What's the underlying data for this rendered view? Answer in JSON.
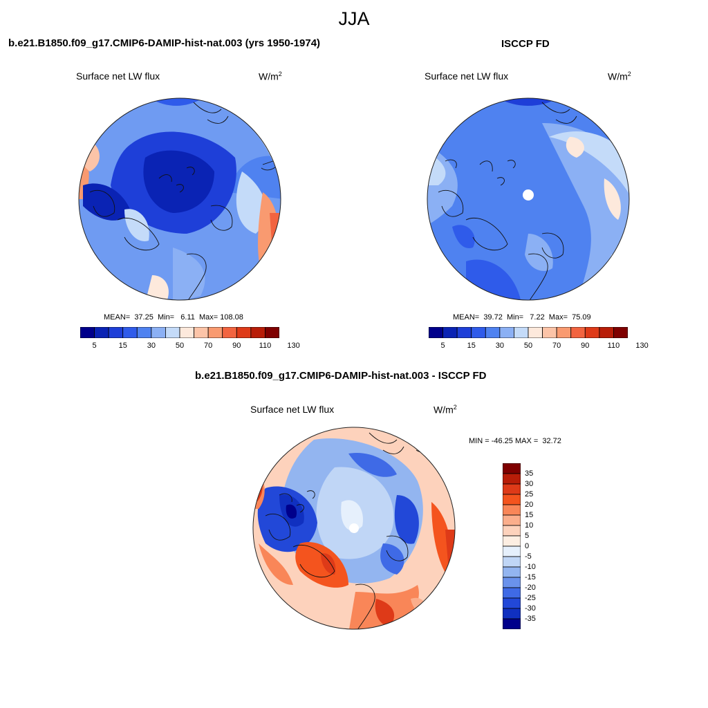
{
  "title": "JJA",
  "panels": [
    {
      "title": "b.e21.B1850.f09_g17.CMIP6-DAMIP-hist-nat.003 (yrs 1950-1974)",
      "variable": "Surface net LW flux",
      "units_base": "W/m",
      "units_sup": "2",
      "stats": "MEAN=  37.25  Min=   6.11  Max= 108.08",
      "colorbar": {
        "labels": [
          "5",
          "15",
          "30",
          "50",
          "70",
          "90",
          "110",
          "130"
        ],
        "colors": [
          "#00008b",
          "#0a23b4",
          "#1e3fd8",
          "#2f5bea",
          "#4f82f0",
          "#8bb0f4",
          "#c4dbf9",
          "#fde9dc",
          "#fcc4a8",
          "#f99a70",
          "#f26440",
          "#de3a18",
          "#b81d08",
          "#7f0000"
        ]
      }
    },
    {
      "title": "ISCCP FD",
      "variable": "Surface net LW flux",
      "units_base": "W/m",
      "units_sup": "2",
      "stats": "MEAN=  39.72  Min=   7.22  Max=  75.09",
      "colorbar": {
        "labels": [
          "5",
          "15",
          "30",
          "50",
          "70",
          "90",
          "110",
          "130"
        ],
        "colors": [
          "#00008b",
          "#0a23b4",
          "#1e3fd8",
          "#2f5bea",
          "#4f82f0",
          "#8bb0f4",
          "#c4dbf9",
          "#fde9dc",
          "#fcc4a8",
          "#f99a70",
          "#f26440",
          "#de3a18",
          "#b81d08",
          "#7f0000"
        ]
      }
    },
    {
      "title": "b.e21.B1850.f09_g17.CMIP6-DAMIP-hist-nat.003 - ISCCP FD",
      "variable": "Surface net LW flux",
      "units_base": "W/m",
      "units_sup": "2",
      "stats": "MIN = -46.25 MAX =  32.72",
      "colorbar": {
        "labels": [
          "35",
          "30",
          "25",
          "20",
          "15",
          "10",
          "5",
          "0",
          "-5",
          "-10",
          "-15",
          "-20",
          "-25",
          "-30",
          "-35"
        ],
        "colors": [
          "#7f0000",
          "#b81d08",
          "#de3a18",
          "#f4541e",
          "#f98658",
          "#fbae8c",
          "#fdd2bc",
          "#fdeee2",
          "#e6f0fc",
          "#c0d6f6",
          "#93b5f0",
          "#6a92ec",
          "#3f6ae6",
          "#2248d8",
          "#1030c0",
          "#00008b"
        ]
      }
    }
  ]
}
